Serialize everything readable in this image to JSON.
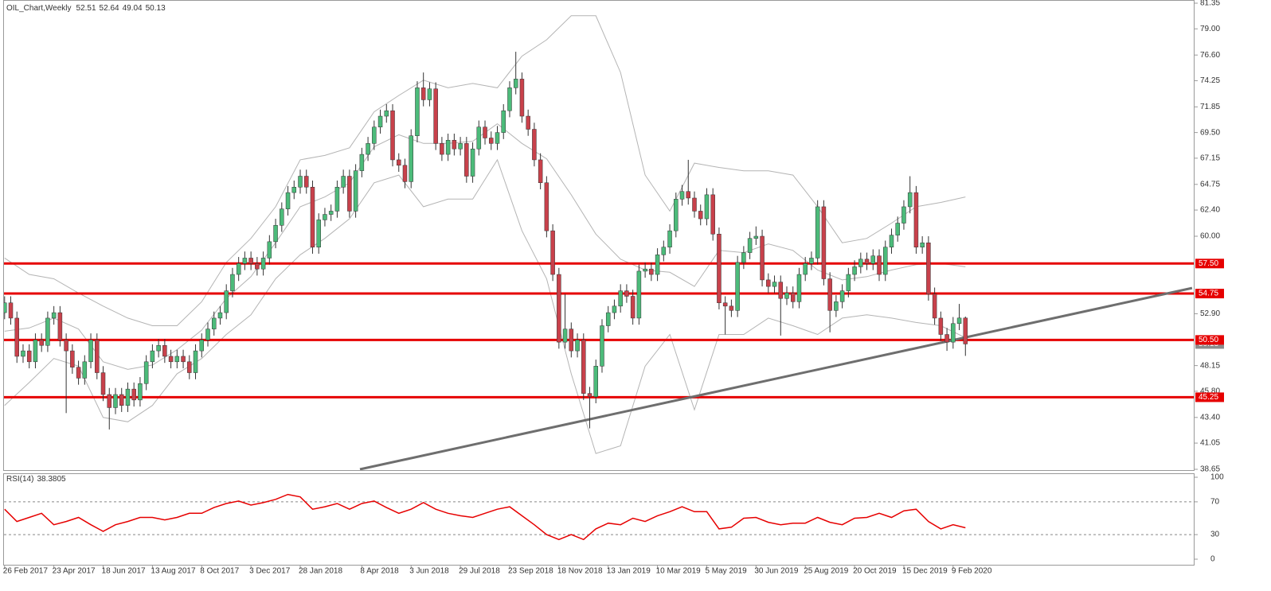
{
  "chart_data": {
    "type": "candlestick",
    "title": "OIL_Chart,Weekly",
    "up_color": "#4cbb7a",
    "down_color": "#c8414b",
    "open": [
      53.0,
      53.9,
      52.5,
      49.0,
      49.5,
      48.5,
      50.5,
      50.0,
      52.5,
      53.0,
      50.5,
      49.5,
      48.0,
      47.0,
      48.5,
      50.5,
      47.5,
      45.5,
      44.3,
      45.5,
      44.5,
      46.0,
      45.0,
      46.5,
      48.5,
      49.5,
      50.0,
      49.0,
      48.5,
      49.0,
      48.5,
      47.5,
      49.5,
      50.5,
      51.5,
      52.5,
      53.0,
      55.0,
      56.5,
      57.5,
      58.0,
      57.5,
      57.0,
      58.0,
      59.5,
      61.0,
      62.5,
      64.0,
      64.5,
      65.5,
      64.5,
      59.0,
      61.5,
      62.0,
      62.3,
      64.5,
      65.5,
      62.3,
      66.0,
      67.5,
      68.5,
      70.0,
      71.0,
      71.5,
      67.0,
      66.5,
      65.0,
      69.2,
      73.6,
      72.5,
      73.5,
      68.5,
      67.5,
      68.8,
      68.0,
      68.5,
      65.5,
      68.0,
      70.0,
      69.0,
      68.5,
      69.5,
      71.5,
      73.6,
      74.4,
      71.0,
      69.8,
      67.0,
      64.9,
      60.5,
      56.5,
      50.3,
      51.5,
      49.5,
      50.5,
      45.6,
      45.3,
      48.1,
      51.8,
      53.0,
      53.6,
      55.0,
      54.5,
      52.5,
      56.8,
      57.0,
      56.5,
      58.3,
      59.0,
      60.5,
      63.4,
      64.1,
      63.5,
      62.3,
      61.6,
      63.8,
      60.2,
      53.9,
      53.6,
      53.2,
      57.6,
      58.5,
      59.8,
      60.0,
      56.0,
      55.4,
      55.8,
      54.3,
      54.8,
      54.0,
      56.5,
      57.5,
      58.0,
      62.7,
      56.1,
      53.2,
      54.0,
      55.0,
      56.5,
      57.2,
      57.9,
      57.5,
      58.2,
      56.5,
      59.0,
      60.1,
      61.2,
      62.7,
      64.0,
      59.0,
      59.4,
      54.7,
      52.5,
      51.0,
      50.3,
      52.0,
      52.51
    ],
    "high": [
      54.5,
      54.5,
      53.1,
      50.1,
      50.1,
      51.1,
      51.1,
      53.1,
      53.6,
      53.6,
      51.1,
      50.1,
      48.6,
      49.1,
      51.1,
      51.1,
      48.1,
      46.1,
      46.1,
      46.1,
      46.6,
      46.6,
      47.1,
      49.1,
      50.1,
      50.6,
      50.6,
      49.6,
      49.6,
      49.6,
      49.1,
      50.1,
      51.1,
      52.1,
      53.1,
      53.6,
      55.6,
      57.1,
      58.1,
      58.6,
      58.6,
      58.1,
      58.6,
      60.1,
      61.6,
      63.1,
      64.6,
      65.1,
      66.1,
      66.1,
      65.1,
      62.1,
      62.6,
      62.9,
      65.1,
      66.1,
      66.1,
      66.6,
      68.1,
      69.1,
      70.6,
      71.6,
      72.1,
      72.1,
      67.6,
      67.1,
      69.8,
      74.2,
      75.0,
      74.1,
      74.1,
      69.1,
      69.4,
      69.4,
      69.1,
      69.1,
      68.6,
      70.6,
      70.6,
      69.6,
      70.1,
      72.1,
      74.2,
      76.9,
      75.0,
      71.6,
      70.4,
      67.6,
      65.5,
      61.1,
      57.1,
      54.7,
      52.1,
      51.1,
      51.1,
      46.2,
      48.7,
      52.4,
      53.6,
      54.2,
      55.6,
      55.6,
      55.1,
      57.4,
      57.6,
      57.6,
      58.9,
      59.6,
      61.1,
      64.0,
      64.7,
      67.0,
      64.1,
      62.9,
      64.4,
      64.4,
      60.8,
      54.5,
      54.2,
      58.2,
      59.1,
      60.4,
      60.9,
      60.6,
      56.6,
      56.4,
      56.4,
      55.4,
      55.4,
      57.1,
      58.1,
      58.6,
      63.3,
      63.3,
      56.7,
      54.6,
      55.6,
      57.1,
      57.8,
      58.5,
      58.5,
      58.8,
      58.8,
      59.6,
      60.7,
      61.8,
      63.3,
      65.5,
      64.6,
      60.0,
      60.0,
      55.3,
      53.1,
      51.6,
      52.6,
      53.8,
      52.64
    ],
    "low": [
      52.4,
      51.9,
      48.4,
      48.4,
      47.9,
      47.9,
      49.4,
      49.4,
      51.9,
      49.9,
      43.8,
      47.4,
      46.4,
      46.4,
      47.9,
      46.9,
      44.9,
      42.3,
      43.7,
      43.9,
      43.9,
      44.4,
      44.4,
      45.9,
      47.9,
      48.9,
      48.4,
      47.9,
      47.9,
      47.9,
      46.9,
      46.9,
      48.9,
      49.9,
      50.9,
      51.9,
      52.4,
      54.4,
      55.9,
      56.9,
      56.9,
      56.4,
      56.4,
      57.4,
      58.9,
      60.4,
      61.9,
      63.4,
      63.9,
      63.9,
      58.4,
      58.4,
      60.9,
      61.4,
      61.7,
      63.9,
      61.7,
      61.7,
      65.4,
      66.9,
      67.9,
      69.4,
      70.4,
      66.4,
      65.9,
      64.4,
      64.4,
      68.6,
      71.9,
      71.9,
      67.9,
      66.9,
      66.9,
      67.4,
      67.4,
      64.9,
      64.9,
      67.4,
      68.4,
      67.9,
      67.9,
      68.9,
      70.9,
      73.0,
      70.4,
      69.2,
      66.4,
      64.3,
      59.9,
      55.9,
      49.7,
      49.7,
      48.9,
      48.9,
      45.0,
      42.4,
      44.7,
      47.5,
      51.2,
      52.4,
      53.0,
      53.9,
      51.9,
      51.9,
      56.2,
      55.9,
      55.9,
      57.7,
      58.4,
      59.9,
      62.8,
      62.9,
      61.7,
      61.0,
      61.0,
      59.6,
      53.3,
      51.0,
      52.6,
      52.6,
      57.0,
      57.9,
      59.2,
      55.4,
      54.8,
      54.8,
      50.9,
      53.7,
      53.4,
      53.4,
      55.9,
      56.9,
      57.4,
      55.5,
      51.2,
      52.6,
      53.4,
      54.4,
      55.9,
      56.6,
      56.9,
      56.9,
      55.9,
      55.9,
      58.4,
      59.5,
      60.6,
      62.1,
      58.4,
      58.4,
      54.1,
      51.9,
      50.4,
      49.5,
      49.7,
      51.4,
      49.04
    ],
    "close": [
      53.9,
      52.5,
      49.0,
      49.5,
      48.5,
      50.5,
      50.0,
      52.5,
      53.0,
      50.5,
      49.5,
      48.0,
      47.0,
      48.5,
      50.5,
      47.5,
      45.5,
      44.3,
      45.5,
      44.5,
      46.0,
      45.0,
      46.5,
      48.5,
      49.5,
      50.0,
      49.0,
      48.5,
      49.0,
      48.5,
      47.5,
      49.5,
      50.5,
      51.5,
      52.5,
      53.0,
      55.0,
      56.5,
      57.5,
      58.0,
      57.5,
      57.0,
      58.0,
      59.5,
      61.0,
      62.5,
      64.0,
      64.5,
      65.5,
      64.5,
      59.0,
      61.5,
      62.0,
      62.3,
      64.5,
      65.5,
      62.3,
      66.0,
      67.5,
      68.5,
      70.0,
      71.0,
      71.5,
      67.0,
      66.5,
      65.0,
      69.2,
      73.6,
      72.5,
      73.5,
      68.5,
      67.5,
      68.8,
      68.0,
      68.5,
      65.5,
      68.0,
      70.0,
      69.0,
      68.5,
      69.5,
      71.5,
      73.6,
      74.4,
      71.0,
      69.8,
      67.0,
      64.9,
      60.5,
      56.5,
      50.3,
      51.5,
      49.5,
      50.5,
      45.6,
      45.3,
      48.1,
      51.8,
      53.0,
      53.6,
      55.0,
      54.5,
      52.5,
      56.8,
      57.0,
      56.5,
      58.3,
      59.0,
      60.5,
      63.4,
      64.1,
      63.5,
      62.3,
      61.6,
      63.8,
      60.2,
      53.9,
      53.6,
      53.2,
      57.6,
      58.5,
      59.8,
      60.0,
      56.0,
      55.4,
      55.8,
      54.3,
      54.8,
      54.0,
      56.5,
      57.5,
      58.0,
      62.7,
      56.1,
      53.2,
      54.0,
      55.0,
      56.5,
      57.2,
      57.9,
      57.5,
      58.2,
      56.5,
      59.0,
      60.1,
      61.2,
      62.7,
      64.0,
      59.0,
      59.4,
      54.7,
      52.5,
      51.0,
      50.3,
      52.0,
      52.51,
      50.13
    ],
    "xlim": [
      -0.1,
      193.2
    ],
    "ylim": [
      38.65,
      81.35
    ],
    "yticks": [
      81.35,
      {
        "value": 79,
        "label": "79.00"
      },
      {
        "value": 76.6,
        "label": "76.60"
      },
      74.25,
      71.85,
      {
        "value": 69.5,
        "label": "69.50"
      },
      67.15,
      64.75,
      {
        "value": 62.4,
        "label": "62.40"
      },
      {
        "value": 60,
        "label": "60.00"
      },
      {
        "value": 52.9,
        "label": "52.90"
      },
      48.15,
      {
        "value": 45.8,
        "label": "45.80"
      },
      {
        "value": 43.4,
        "label": "43.40"
      },
      41.05,
      38.65
    ],
    "xticks": [
      {
        "value": 0,
        "label": "26 Feb 2017"
      },
      {
        "value": 8,
        "label": "23 Apr 2017"
      },
      {
        "value": 16,
        "label": "18 Jun 2017"
      },
      {
        "value": 24,
        "label": "13 Aug 2017"
      },
      {
        "value": 32,
        "label": "8 Oct 2017"
      },
      {
        "value": 40,
        "label": "3 Dec 2017"
      },
      {
        "value": 48,
        "label": "28 Jan 2018"
      },
      {
        "value": 58,
        "label": "8 Apr 2018"
      },
      {
        "value": 66,
        "label": "3 Jun 2018"
      },
      {
        "value": 74,
        "label": "29 Jul 2018"
      },
      {
        "value": 82,
        "label": "23 Sep 2018"
      },
      {
        "value": 90,
        "label": "18 Nov 2018"
      },
      {
        "value": 98,
        "label": "13 Jan 2019"
      },
      {
        "value": 106,
        "label": "10 Mar 2019"
      },
      {
        "value": 114,
        "label": "5 May 2019"
      },
      {
        "value": 122,
        "label": "30 Jun 2019"
      },
      {
        "value": 130,
        "label": "25 Aug 2019"
      },
      {
        "value": 138,
        "label": "20 Oct 2019"
      },
      {
        "value": 146,
        "label": "15 Dec 2019"
      },
      {
        "value": 154,
        "label": "9 Feb 2020"
      }
    ],
    "bands": {
      "color": "#b4b4b4",
      "x": [
        0,
        4,
        8,
        12,
        16,
        20,
        24,
        28,
        32,
        36,
        40,
        44,
        48,
        52,
        56,
        60,
        64,
        68,
        72,
        76,
        80,
        84,
        88,
        92,
        96,
        100,
        104,
        108,
        112,
        116,
        120,
        124,
        128,
        132,
        136,
        140,
        144,
        148,
        152,
        156
      ],
      "upper": [
        58,
        56.5,
        56.1,
        54.8,
        53.6,
        52.5,
        51.8,
        51.8,
        54,
        57.6,
        59.8,
        62.7,
        67,
        67.4,
        68.1,
        71.4,
        72.9,
        74.3,
        73.6,
        74,
        73.6,
        76.5,
        78,
        80.2,
        80.2,
        75,
        65.6,
        62.3,
        66.7,
        66.3,
        66,
        66,
        65.6,
        62.7,
        59.4,
        59.8,
        61.2,
        62.7,
        63.1,
        63.6
      ],
      "middle": [
        51.3,
        51.6,
        52.5,
        51.5,
        48.5,
        47.8,
        48.2,
        49.6,
        51.4,
        54.3,
        56.3,
        59.4,
        62.7,
        63.6,
        64.9,
        68.2,
        69.3,
        68.5,
        68.5,
        68.7,
        70.3,
        68.5,
        67.1,
        63.8,
        60.2,
        57.9,
        56.9,
        56.7,
        55.4,
        58.7,
        58.5,
        59.3,
        58.7,
        56.9,
        56,
        56.3,
        56.9,
        57.4,
        57.5,
        57.2
      ],
      "lower": [
        44.5,
        46.6,
        48.8,
        48.1,
        43.4,
        43,
        44.5,
        47.4,
        48.8,
        51,
        52.8,
        56.1,
        58.3,
        59.8,
        61.6,
        64.9,
        65.6,
        62.7,
        63.4,
        63.4,
        67,
        60.5,
        56.1,
        47.4,
        40.1,
        40.8,
        48.1,
        51,
        44.1,
        51,
        51,
        52.5,
        51.8,
        51,
        52.5,
        52.8,
        52.5,
        52.1,
        51.8,
        50.7
      ]
    },
    "levels": {
      "color": "#e60000",
      "values": [
        {
          "value": 57.5,
          "label": "57.50"
        },
        {
          "value": 54.75,
          "label": "54.75"
        },
        {
          "value": 50.5,
          "label": "50.50"
        },
        {
          "value": 45.25,
          "label": "45.25"
        }
      ]
    },
    "trendline": {
      "color": "#6e6e6e",
      "x": [
        57.7,
        192.8
      ],
      "y": [
        38.65,
        55.26
      ]
    },
    "rsi": {
      "title": "RSI(14)",
      "color": "#e60000",
      "ylim": [
        0,
        100
      ],
      "yticks": [
        0,
        30,
        70,
        100
      ],
      "levels": [
        30,
        70
      ],
      "x": [
        0,
        2,
        4,
        6,
        8,
        10,
        12,
        14,
        16,
        18,
        20,
        22,
        24,
        26,
        28,
        30,
        32,
        34,
        36,
        38,
        40,
        42,
        44,
        46,
        48,
        50,
        52,
        54,
        56,
        58,
        60,
        62,
        64,
        66,
        68,
        70,
        72,
        74,
        76,
        78,
        80,
        82,
        84,
        86,
        88,
        90,
        92,
        94,
        96,
        98,
        100,
        102,
        104,
        106,
        108,
        110,
        112,
        114,
        116,
        118,
        120,
        122,
        124,
        126,
        128,
        130,
        132,
        134,
        136,
        138,
        140,
        142,
        144,
        146,
        148,
        150,
        152,
        154,
        156
      ],
      "values": [
        61,
        46,
        51,
        56,
        42,
        46,
        51,
        42,
        34,
        42,
        46,
        51,
        51,
        48,
        51,
        56,
        56,
        63,
        68,
        71,
        66,
        69,
        73,
        79,
        76,
        61,
        64,
        68,
        61,
        68,
        71,
        63,
        56,
        61,
        69,
        61,
        56,
        53,
        51,
        56,
        61,
        64,
        53,
        42,
        30,
        24,
        30,
        24,
        37,
        44,
        42,
        50,
        46,
        53,
        58,
        64,
        58,
        58,
        37,
        39,
        50,
        51,
        45,
        42,
        44,
        44,
        51,
        45,
        42,
        50,
        51,
        56,
        51,
        59,
        61,
        46,
        37,
        42,
        38.3805
      ]
    }
  }
}
